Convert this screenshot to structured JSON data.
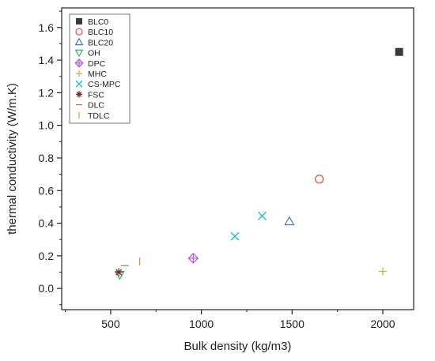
{
  "chart_data": {
    "type": "scatter",
    "title": "",
    "xlabel": "Bulk density (kg/m3)",
    "ylabel": "thermal conductivity (W/m.K)",
    "xlim": [
      230,
      2170
    ],
    "ylim": [
      -0.13,
      1.72
    ],
    "x_ticks": [
      500,
      1000,
      1500,
      2000
    ],
    "y_ticks": [
      0.0,
      0.2,
      0.4,
      0.6,
      0.8,
      1.0,
      1.2,
      1.4,
      1.6
    ],
    "x_tick_labels": [
      "500",
      "1000",
      "1500",
      "2000"
    ],
    "y_tick_labels": [
      "0.0",
      "0.2",
      "0.4",
      "0.6",
      "0.8",
      "1.0",
      "1.2",
      "1.4",
      "1.6"
    ],
    "grid": false,
    "legend_position": "top-left",
    "series": [
      {
        "name": "BLC0",
        "marker": "square",
        "color": "#3a3a3a",
        "points": [
          [
            2090,
            1.45
          ]
        ]
      },
      {
        "name": "BLC10",
        "marker": "circle",
        "color": "#e8453c",
        "points": [
          [
            1650,
            0.67
          ]
        ]
      },
      {
        "name": "BLC20",
        "marker": "triangle-up",
        "color": "#3c78d8",
        "points": [
          [
            1485,
            0.41
          ]
        ]
      },
      {
        "name": "OH",
        "marker": "triangle-down",
        "color": "#2bb673",
        "points": [
          [
            550,
            0.085
          ]
        ]
      },
      {
        "name": "DPC",
        "marker": "diamond",
        "color": "#b259e6",
        "points": [
          [
            955,
            0.185
          ]
        ]
      },
      {
        "name": "MHC",
        "marker": "plus",
        "color": "#e8a33c",
        "points": [
          [
            2000,
            0.105
          ]
        ]
      },
      {
        "name": "CS-MPC",
        "marker": "x",
        "color": "#19c3d1",
        "points": [
          [
            1185,
            0.32
          ],
          [
            1335,
            0.445
          ]
        ]
      },
      {
        "name": "FSC",
        "marker": "star",
        "color": "#7a2a2a",
        "points": [
          [
            545,
            0.1
          ]
        ]
      },
      {
        "name": "DLC",
        "marker": "hline",
        "color": "#9a8a2a",
        "points": [
          [
            578,
            0.14
          ]
        ]
      },
      {
        "name": "TDLC",
        "marker": "vline",
        "color": "#e8873c",
        "points": [
          [
            660,
            0.165
          ]
        ]
      }
    ]
  }
}
